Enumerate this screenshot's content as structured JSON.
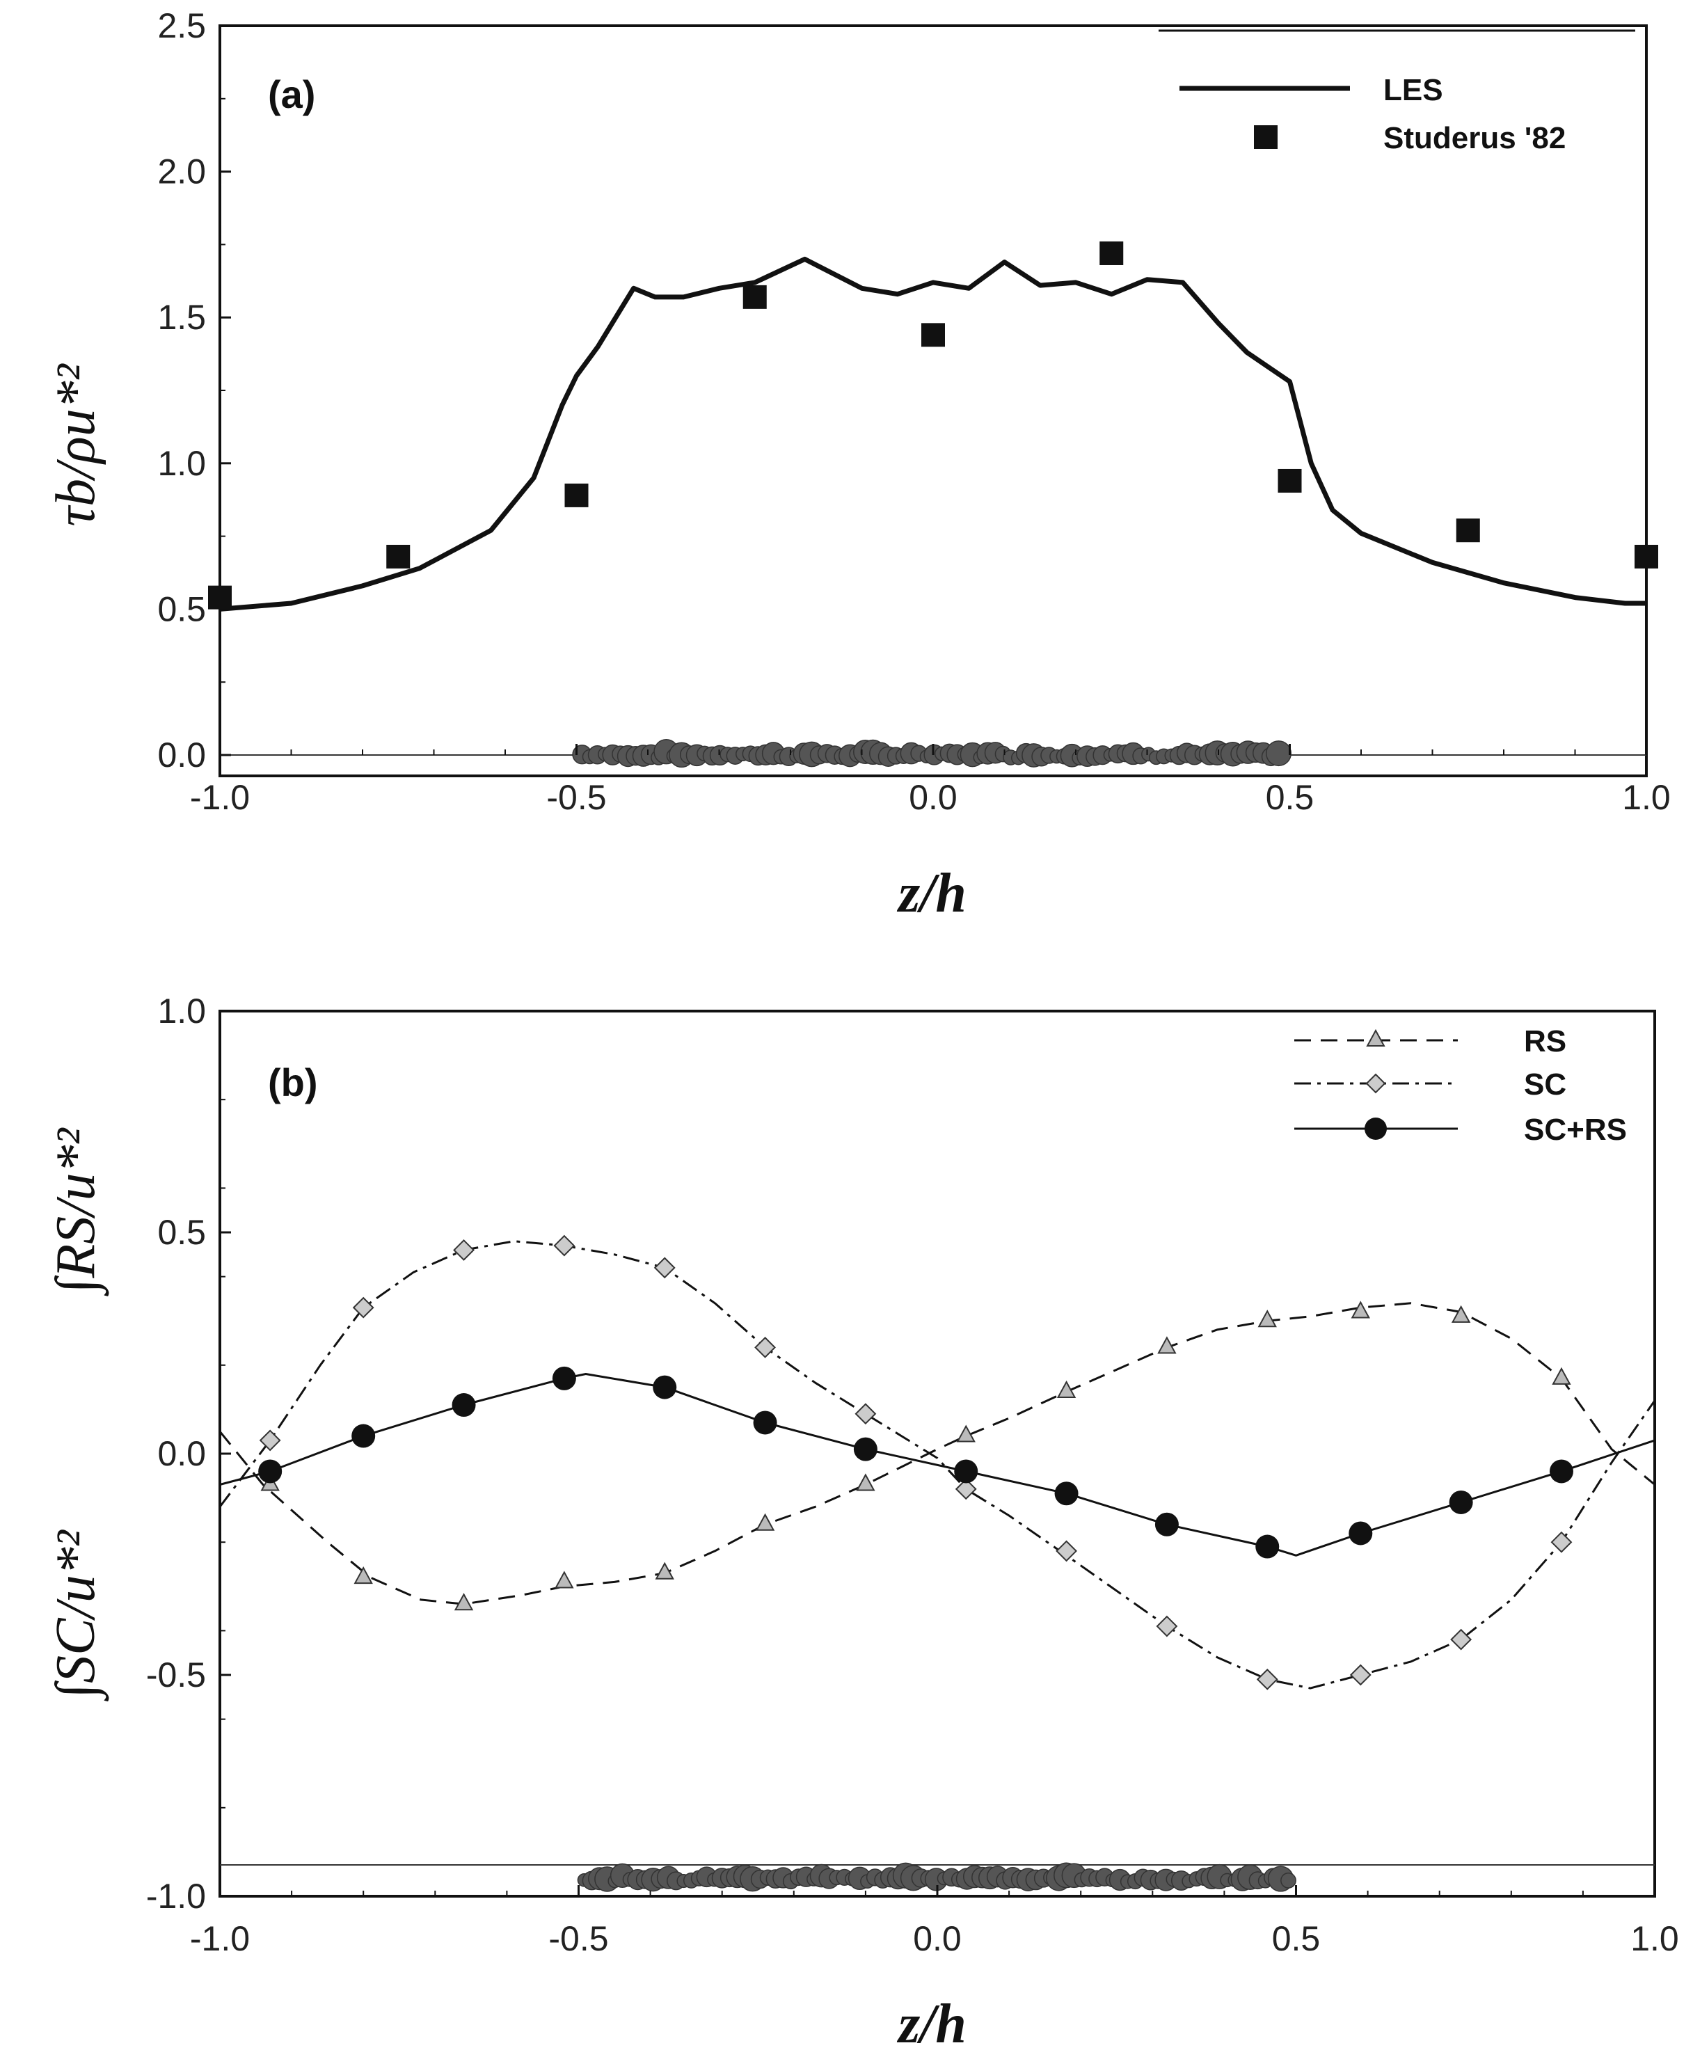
{
  "chart_data": [
    {
      "panel": "(a)",
      "type": "line",
      "xlabel": "z/h",
      "ylabel": "τb/ρu*²",
      "xlim": [
        -1.0,
        1.0
      ],
      "ylim": [
        0.0,
        2.5
      ],
      "xticks": [
        "-1.0",
        "-0.5",
        "0.0",
        "0.5",
        "1.0"
      ],
      "yticks": [
        "0.0",
        "0.5",
        "1.0",
        "1.5",
        "2.0",
        "2.5"
      ],
      "series": [
        {
          "name": "LES",
          "style": "solid",
          "x": [
            -1.0,
            -0.9,
            -0.8,
            -0.72,
            -0.62,
            -0.56,
            -0.52,
            -0.5,
            -0.47,
            -0.44,
            -0.42,
            -0.39,
            -0.35,
            -0.3,
            -0.25,
            -0.18,
            -0.1,
            -0.05,
            0.0,
            0.05,
            0.1,
            0.15,
            0.2,
            0.25,
            0.3,
            0.35,
            0.4,
            0.44,
            0.47,
            0.5,
            0.53,
            0.56,
            0.6,
            0.7,
            0.8,
            0.9,
            0.97,
            1.0
          ],
          "y": [
            0.5,
            0.52,
            0.58,
            0.64,
            0.77,
            0.95,
            1.2,
            1.3,
            1.4,
            1.52,
            1.6,
            1.57,
            1.57,
            1.6,
            1.62,
            1.7,
            1.6,
            1.58,
            1.62,
            1.6,
            1.69,
            1.61,
            1.62,
            1.58,
            1.63,
            1.62,
            1.48,
            1.38,
            1.33,
            1.28,
            1.0,
            0.84,
            0.76,
            0.66,
            0.59,
            0.54,
            0.52,
            0.52
          ]
        },
        {
          "name": "Studerus '82",
          "style": "square-markers",
          "x": [
            -1.0,
            -0.75,
            -0.5,
            -0.25,
            0.0,
            0.25,
            0.5,
            0.75,
            1.0
          ],
          "y": [
            0.54,
            0.68,
            0.89,
            1.57,
            1.44,
            1.72,
            0.94,
            0.77,
            0.68
          ]
        }
      ],
      "legend": [
        "LES",
        "Studerus '82"
      ]
    },
    {
      "panel": "(b)",
      "type": "line",
      "xlabel": "z/h",
      "ylabel_lower": "∫SC/u*²",
      "ylabel_upper": "∫RS/u*²",
      "xlim": [
        -1.0,
        1.0
      ],
      "ylim": [
        -1.0,
        1.0
      ],
      "xticks": [
        "-1.0",
        "-0.5",
        "0.0",
        "0.5",
        "1.0"
      ],
      "yticks": [
        "-1.0",
        "-0.5",
        "0.0",
        "0.5",
        "1.0"
      ],
      "series": [
        {
          "name": "RS",
          "style": "dashed-triangle",
          "line_x": [
            -1.0,
            -0.94,
            -0.85,
            -0.79,
            -0.72,
            -0.66,
            -0.58,
            -0.52,
            -0.45,
            -0.38,
            -0.31,
            -0.24,
            -0.17,
            -0.1,
            -0.05,
            0.0,
            0.04,
            0.1,
            0.18,
            0.25,
            0.32,
            0.39,
            0.46,
            0.52,
            0.59,
            0.66,
            0.73,
            0.8,
            0.87,
            0.94,
            1.0
          ],
          "line_y": [
            0.05,
            -0.07,
            -0.2,
            -0.28,
            -0.33,
            -0.34,
            -0.32,
            -0.3,
            -0.29,
            -0.27,
            -0.22,
            -0.16,
            -0.12,
            -0.07,
            -0.03,
            0.01,
            0.04,
            0.08,
            0.14,
            0.19,
            0.24,
            0.28,
            0.3,
            0.31,
            0.33,
            0.34,
            0.32,
            0.26,
            0.17,
            0.01,
            -0.07
          ],
          "x": [
            -0.93,
            -0.8,
            -0.66,
            -0.52,
            -0.38,
            -0.24,
            -0.1,
            0.04,
            0.18,
            0.32,
            0.46,
            0.59,
            0.73,
            0.87
          ],
          "y": [
            -0.07,
            -0.28,
            -0.34,
            -0.29,
            -0.27,
            -0.16,
            -0.07,
            0.04,
            0.14,
            0.24,
            0.3,
            0.32,
            0.31,
            0.17
          ]
        },
        {
          "name": "SC",
          "style": "dashdot-diamond",
          "line_x": [
            -1.0,
            -0.93,
            -0.86,
            -0.8,
            -0.73,
            -0.66,
            -0.59,
            -0.52,
            -0.45,
            -0.38,
            -0.31,
            -0.24,
            -0.17,
            -0.1,
            -0.05,
            0.0,
            0.04,
            0.1,
            0.18,
            0.25,
            0.32,
            0.39,
            0.46,
            0.52,
            0.59,
            0.66,
            0.73,
            0.8,
            0.87,
            0.94,
            1.0
          ],
          "line_y": [
            -0.12,
            0.03,
            0.2,
            0.33,
            0.41,
            0.46,
            0.48,
            0.47,
            0.45,
            0.42,
            0.34,
            0.24,
            0.16,
            0.09,
            0.04,
            -0.01,
            -0.08,
            -0.14,
            -0.23,
            -0.31,
            -0.39,
            -0.46,
            -0.51,
            -0.53,
            -0.5,
            -0.47,
            -0.42,
            -0.33,
            -0.2,
            -0.02,
            0.12
          ],
          "x": [
            -0.93,
            -0.8,
            -0.66,
            -0.52,
            -0.38,
            -0.24,
            -0.1,
            0.04,
            0.18,
            0.32,
            0.46,
            0.59,
            0.73,
            0.87
          ],
          "y": [
            0.03,
            0.33,
            0.46,
            0.47,
            0.42,
            0.24,
            0.09,
            -0.08,
            -0.22,
            -0.39,
            -0.51,
            -0.5,
            -0.42,
            -0.2
          ]
        },
        {
          "name": "SC+RS",
          "style": "solid-circle",
          "line_x": [
            -1.0,
            -0.93,
            -0.8,
            -0.66,
            -0.52,
            -0.49,
            -0.38,
            -0.24,
            -0.1,
            0.04,
            0.18,
            0.32,
            0.46,
            0.5,
            0.59,
            0.73,
            0.87,
            1.0
          ],
          "line_y": [
            -0.07,
            -0.04,
            0.04,
            0.11,
            0.17,
            0.18,
            0.15,
            0.07,
            0.01,
            -0.04,
            -0.09,
            -0.16,
            -0.21,
            -0.23,
            -0.18,
            -0.11,
            -0.04,
            0.03
          ],
          "x": [
            -0.93,
            -0.8,
            -0.66,
            -0.52,
            -0.38,
            -0.24,
            -0.1,
            0.04,
            0.18,
            0.32,
            0.46,
            0.59,
            0.73,
            0.87
          ],
          "y": [
            -0.04,
            0.04,
            0.11,
            0.17,
            0.15,
            0.07,
            0.01,
            -0.04,
            -0.09,
            -0.16,
            -0.21,
            -0.18,
            -0.11,
            -0.04
          ]
        }
      ],
      "legend": [
        "RS",
        "SC",
        "SC+RS"
      ]
    }
  ]
}
